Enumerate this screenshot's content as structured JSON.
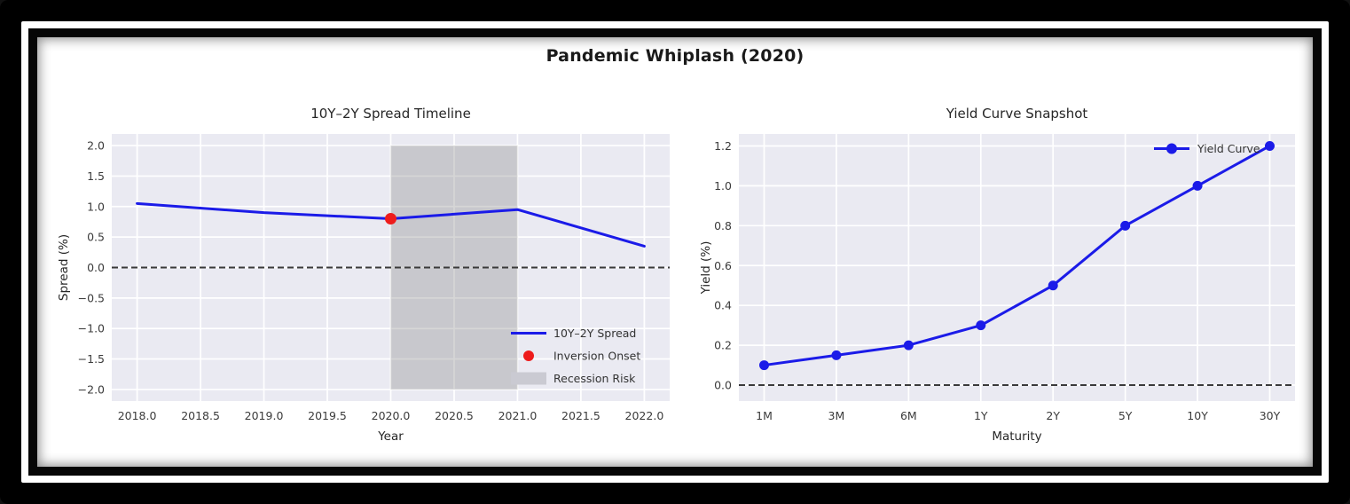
{
  "title": "Pandemic Whiplash (2020)",
  "frame": {
    "outer_color": "#000000",
    "matte_color": "#ffffff",
    "inner_border_color": "#060606",
    "figure_background": "#ffffff"
  },
  "colors": {
    "plot_background": "#eaeaf2",
    "grid": "#ffffff",
    "line_blue": "#1b1be8",
    "marker_red": "#ee1c1c",
    "recession_gray": "rgba(128,128,128,0.32)",
    "text_dark": "#262626"
  },
  "chart_data": [
    {
      "type": "line",
      "title": "10Y–2Y Spread Timeline",
      "xlabel": "Year",
      "ylabel": "Spread (%)",
      "x": [
        2018,
        2019,
        2020,
        2021,
        2022
      ],
      "series": [
        {
          "name": "10Y–2Y Spread",
          "values": [
            1.05,
            0.9,
            0.8,
            0.95,
            0.35
          ],
          "color": "#1b1be8",
          "marker": false
        }
      ],
      "xticks": [
        2018,
        2018.5,
        2019,
        2019.5,
        2020,
        2020.5,
        2021,
        2021.5,
        2022
      ],
      "xtick_labels": [
        "2018.0",
        "2018.5",
        "2019.0",
        "2019.5",
        "2020.0",
        "2020.5",
        "2021.0",
        "2021.5",
        "2022.0"
      ],
      "yticks": [
        -2,
        -1.5,
        -1,
        -0.5,
        0,
        0.5,
        1,
        1.5,
        2
      ],
      "ytick_labels": [
        "−2.0",
        "−1.5",
        "−1.0",
        "−0.5",
        "0.0",
        "0.5",
        "1.0",
        "1.5",
        "2.0"
      ],
      "xlim": [
        2017.8,
        2022.2
      ],
      "ylim": [
        -2.19,
        2.19
      ],
      "grid": true,
      "zero_line": true,
      "plot_bg": "#eaeaf2",
      "highlight_point": {
        "x": 2020,
        "y": 0.8,
        "color": "#ee1c1c",
        "meaning": "Inversion Onset"
      },
      "recession_band": {
        "x0": 2020,
        "x1": 2021,
        "y0": -2,
        "y1": 2,
        "color": "rgba(128,128,128,0.32)",
        "meaning": "Recession Risk"
      },
      "legend": {
        "position": "lower-right",
        "items": [
          {
            "label": "10Y–2Y Spread",
            "marker": "line",
            "color": "#1b1be8"
          },
          {
            "label": "Inversion Onset",
            "marker": "dot",
            "color": "#ee1c1c"
          },
          {
            "label": "Recession Risk",
            "marker": "patch",
            "color": "#cacad2"
          }
        ]
      }
    },
    {
      "type": "line",
      "title": "Yield Curve Snapshot",
      "xlabel": "Maturity",
      "ylabel": "Yield (%)",
      "categories": [
        "1M",
        "3M",
        "6M",
        "1Y",
        "2Y",
        "5Y",
        "10Y",
        "30Y"
      ],
      "series": [
        {
          "name": "Yield Curve",
          "values": [
            0.1,
            0.15,
            0.2,
            0.3,
            0.5,
            0.8,
            1.0,
            1.2
          ],
          "color": "#1b1be8",
          "marker": true
        }
      ],
      "yticks": [
        0,
        0.2,
        0.4,
        0.6,
        0.8,
        1.0,
        1.2
      ],
      "ytick_labels": [
        "0.0",
        "0.2",
        "0.4",
        "0.6",
        "0.8",
        "1.0",
        "1.2"
      ],
      "ylim": [
        -0.08,
        1.26
      ],
      "grid": true,
      "zero_line": true,
      "plot_bg": "#eaeaf2",
      "legend": {
        "position": "upper-right",
        "items": [
          {
            "label": "Yield Curve",
            "marker": "line-dot",
            "color": "#1b1be8"
          }
        ]
      }
    }
  ]
}
